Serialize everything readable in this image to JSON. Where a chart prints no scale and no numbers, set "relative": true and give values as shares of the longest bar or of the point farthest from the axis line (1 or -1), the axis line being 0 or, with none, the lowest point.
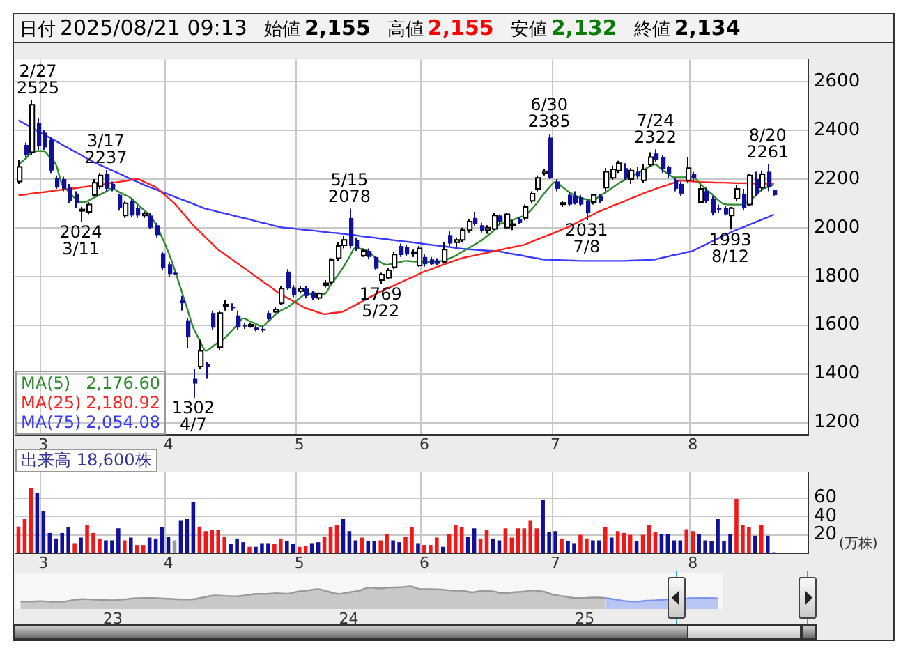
{
  "chart_data": [
    {
      "type": "candlestick",
      "title": "日付 2025/08/21 09:13",
      "categories": [
        null,
        null,
        null,
        null,
        "3",
        null,
        null,
        null,
        null,
        null,
        null,
        null,
        null,
        null,
        null,
        null,
        null,
        null,
        null,
        null,
        null,
        null,
        null,
        null,
        "4",
        null,
        null,
        null,
        null,
        null,
        null,
        null,
        null,
        null,
        null,
        null,
        null,
        null,
        null,
        null,
        null,
        null,
        null,
        null,
        null,
        "5",
        null,
        null,
        null,
        null,
        null,
        null,
        null,
        null,
        null,
        null,
        null,
        null,
        null,
        null,
        null,
        null,
        null,
        null,
        null,
        "6",
        null,
        null,
        null,
        null,
        null,
        null,
        null,
        null,
        null,
        null,
        null,
        null,
        null,
        null,
        null,
        null,
        null,
        null,
        null,
        null,
        "7",
        null,
        null,
        null,
        null,
        null,
        null,
        null,
        null,
        null,
        null,
        null,
        null,
        null,
        null,
        null,
        null,
        null,
        null,
        null,
        null,
        null,
        "8",
        null,
        null,
        null,
        null,
        null,
        null,
        null,
        null,
        null,
        null,
        null,
        null,
        null,
        null,
        null,
        null,
        null,
        null
      ],
      "ohlc": [
        [
          2190,
          2280,
          2180,
          2250
        ],
        [
          2340,
          2350,
          2290,
          2300
        ],
        [
          2310,
          2525,
          2300,
          2505
        ],
        [
          2430,
          2450,
          2320,
          2335
        ],
        [
          2390,
          2400,
          2320,
          2330
        ],
        [
          2360,
          2370,
          2225,
          2235
        ],
        [
          2205,
          2215,
          2160,
          2165
        ],
        [
          2200,
          2210,
          2150,
          2160
        ],
        [
          2165,
          2180,
          2100,
          2110
        ],
        [
          2140,
          2150,
          2080,
          2100
        ],
        [
          2070,
          2085,
          2024,
          2075
        ],
        [
          2065,
          2105,
          2055,
          2095
        ],
        [
          2135,
          2200,
          2130,
          2185
        ],
        [
          2170,
          2225,
          2160,
          2215
        ],
        [
          2220,
          2237,
          2150,
          2160
        ],
        [
          2180,
          2190,
          2150,
          2160
        ],
        [
          2135,
          2140,
          2070,
          2080
        ],
        [
          2050,
          2110,
          2040,
          2100
        ],
        [
          2110,
          2120,
          2045,
          2050
        ],
        [
          2080,
          2090,
          2040,
          2050
        ],
        [
          2050,
          2065,
          2040,
          2058
        ],
        [
          2050,
          2060,
          1995,
          2000
        ],
        [
          2010,
          2020,
          1960,
          1970
        ],
        [
          1895,
          1900,
          1825,
          1835
        ],
        [
          1850,
          1860,
          1800,
          1810
        ],
        [
          1815,
          1820,
          1805,
          1812
        ],
        [
          1705,
          1720,
          1660,
          1690
        ],
        [
          1620,
          1630,
          1505,
          1550
        ],
        [
          1380,
          1420,
          1302,
          1360
        ],
        [
          1430,
          1540,
          1420,
          1495
        ],
        [
          1440,
          1450,
          1380,
          1430
        ],
        [
          1650,
          1660,
          1580,
          1590
        ],
        [
          1510,
          1660,
          1500,
          1650
        ],
        [
          1680,
          1705,
          1660,
          1685
        ],
        [
          1675,
          1690,
          1660,
          1670
        ],
        [
          1640,
          1660,
          1580,
          1590
        ],
        [
          1600,
          1610,
          1585,
          1598
        ],
        [
          1598,
          1610,
          1590,
          1602
        ],
        [
          1590,
          1600,
          1575,
          1582
        ],
        [
          1585,
          1595,
          1570,
          1578
        ],
        [
          1650,
          1660,
          1620,
          1625
        ],
        [
          1655,
          1675,
          1650,
          1665
        ],
        [
          1690,
          1760,
          1685,
          1750
        ],
        [
          1820,
          1830,
          1745,
          1750
        ],
        [
          1755,
          1765,
          1715,
          1725
        ],
        [
          1740,
          1760,
          1730,
          1750
        ],
        [
          1750,
          1760,
          1710,
          1720
        ],
        [
          1735,
          1740,
          1705,
          1712
        ],
        [
          1712,
          1735,
          1705,
          1730
        ],
        [
          1765,
          1785,
          1755,
          1772
        ],
        [
          1778,
          1875,
          1770,
          1868
        ],
        [
          1875,
          1940,
          1865,
          1925
        ],
        [
          1928,
          1965,
          1915,
          1950
        ],
        [
          2040,
          2078,
          1915,
          1925
        ],
        [
          1950,
          1960,
          1905,
          1915
        ],
        [
          1886,
          1915,
          1880,
          1905
        ],
        [
          1905,
          1915,
          1870,
          1880
        ],
        [
          1880,
          1885,
          1825,
          1832
        ],
        [
          1785,
          1815,
          1769,
          1808
        ],
        [
          1795,
          1835,
          1790,
          1825
        ],
        [
          1838,
          1900,
          1830,
          1890
        ],
        [
          1925,
          1935,
          1880,
          1888
        ],
        [
          1920,
          1930,
          1885,
          1890
        ],
        [
          1895,
          1910,
          1880,
          1900
        ],
        [
          1845,
          1925,
          1840,
          1915
        ],
        [
          1880,
          1890,
          1840,
          1850
        ],
        [
          1870,
          1880,
          1845,
          1850
        ],
        [
          1865,
          1875,
          1845,
          1852
        ],
        [
          1860,
          1940,
          1855,
          1910
        ],
        [
          1970,
          1985,
          1925,
          1935
        ],
        [
          1940,
          1960,
          1920,
          1950
        ],
        [
          1950,
          2000,
          1940,
          1990
        ],
        [
          1990,
          2035,
          1980,
          2025
        ],
        [
          2040,
          2065,
          2005,
          2015
        ],
        [
          2010,
          2020,
          1980,
          1988
        ],
        [
          1990,
          2010,
          1975,
          2000
        ],
        [
          1995,
          2060,
          1990,
          2050
        ],
        [
          2050,
          2055,
          2015,
          2025
        ],
        [
          2000,
          2060,
          1995,
          2055
        ],
        [
          2010,
          2030,
          1990,
          2015
        ],
        [
          2035,
          2045,
          2015,
          2020
        ],
        [
          2040,
          2095,
          2030,
          2085
        ],
        [
          2110,
          2150,
          2100,
          2140
        ],
        [
          2160,
          2215,
          2150,
          2205
        ],
        [
          2225,
          2240,
          2215,
          2232
        ],
        [
          2370,
          2385,
          2200,
          2205
        ],
        [
          2190,
          2200,
          2150,
          2160
        ],
        [
          2100,
          2110,
          2085,
          2102
        ],
        [
          2135,
          2145,
          2090,
          2095
        ],
        [
          2130,
          2150,
          2095,
          2100
        ],
        [
          2125,
          2135,
          2090,
          2095
        ],
        [
          2110,
          2120,
          2031,
          2060
        ],
        [
          2105,
          2140,
          2095,
          2135
        ],
        [
          2130,
          2140,
          2100,
          2110
        ],
        [
          2165,
          2245,
          2150,
          2230
        ],
        [
          2205,
          2255,
          2195,
          2240
        ],
        [
          2235,
          2275,
          2225,
          2265
        ],
        [
          2245,
          2265,
          2195,
          2205
        ],
        [
          2200,
          2245,
          2180,
          2235
        ],
        [
          2230,
          2250,
          2200,
          2210
        ],
        [
          2195,
          2260,
          2185,
          2240
        ],
        [
          2260,
          2310,
          2250,
          2290
        ],
        [
          2305,
          2322,
          2270,
          2280
        ],
        [
          2290,
          2300,
          2225,
          2240
        ],
        [
          2250,
          2255,
          2205,
          2220
        ],
        [
          2195,
          2205,
          2150,
          2160
        ],
        [
          2180,
          2190,
          2130,
          2140
        ],
        [
          2195,
          2290,
          2185,
          2245
        ],
        [
          2220,
          2230,
          2190,
          2205
        ],
        [
          2105,
          2175,
          2100,
          2160
        ],
        [
          2150,
          2165,
          2100,
          2110
        ],
        [
          2120,
          2130,
          2050,
          2060
        ],
        [
          2080,
          2095,
          2060,
          2078
        ],
        [
          2080,
          2090,
          2050,
          2055
        ],
        [
          2050,
          2085,
          1993,
          2080
        ],
        [
          2120,
          2175,
          2110,
          2160
        ],
        [
          2140,
          2160,
          2070,
          2080
        ],
        [
          2095,
          2220,
          2090,
          2215
        ],
        [
          2200,
          2230,
          2130,
          2140
        ],
        [
          2165,
          2235,
          2150,
          2220
        ],
        [
          2230,
          2261,
          2150,
          2165
        ],
        [
          2155,
          2155,
          2132,
          2134
        ],
        null,
        null,
        null,
        null,
        null
      ],
      "series": [
        {
          "name": "MA(5) 2,176.60",
          "type": "line",
          "color": "#2e8b2e",
          "values": [
            2260,
            2280,
            2305,
            2315,
            2315,
            2290,
            2260,
            2177,
            2150,
            2122,
            2105,
            2108,
            2122,
            2135,
            2148,
            2161,
            2148,
            2135,
            2122,
            2098,
            2075,
            2051,
            2015,
            1960,
            1900,
            1830,
            1750,
            1670,
            1590,
            1540,
            1495,
            1510,
            1530,
            1546,
            1573,
            1600,
            1628,
            1617,
            1606,
            1595,
            1615,
            1640,
            1660,
            1672,
            1690,
            1710,
            1727,
            1727,
            1727,
            1727,
            1765,
            1800,
            1837,
            1880,
            1919,
            1912,
            1905,
            1880,
            1858,
            1848,
            1853,
            1858,
            1864,
            1862,
            1860,
            1859,
            1861,
            1863,
            1864,
            1874,
            1885,
            1900,
            1915,
            1930,
            1945,
            1965,
            1985,
            2013,
            2022,
            2031,
            2040,
            2050,
            2070,
            2100,
            2135,
            2165,
            2188,
            2170,
            2150,
            2135,
            2122,
            2116,
            2111,
            2128,
            2145,
            2162,
            2180,
            2195,
            2208,
            2222,
            2236,
            2250,
            2260,
            2240,
            2222,
            2207,
            2207,
            2208,
            2210,
            2185,
            2160,
            2140,
            2115,
            2097,
            2095,
            2095,
            2095,
            2110,
            2130,
            2155,
            2168,
            2177,
            null,
            null,
            null,
            null,
            null
          ]
        },
        {
          "name": "MA(25) 2,180.92",
          "type": "line",
          "color": "#ff2020",
          "values": [
            2133,
            2136,
            2140,
            2143,
            2146,
            2149,
            2153,
            2156,
            2159,
            2162,
            2166,
            2169,
            2172,
            2176,
            2180,
            2184,
            2188,
            2192,
            2196,
            2200,
            2190,
            2178,
            2166,
            2144,
            2122,
            2100,
            2070,
            2040,
            2010,
            1985,
            1960,
            1935,
            1910,
            1892,
            1874,
            1855,
            1837,
            1819,
            1800,
            1782,
            1764,
            1745,
            1727,
            1713,
            1699,
            1684,
            1670,
            1662,
            1653,
            1645,
            1649,
            1652,
            1656,
            1670,
            1683,
            1697,
            1711,
            1724,
            1738,
            1750,
            1761,
            1773,
            1785,
            1796,
            1808,
            1820,
            1829,
            1838,
            1848,
            1857,
            1866,
            1875,
            1881,
            1886,
            1892,
            1897,
            1903,
            1908,
            1914,
            1919,
            1925,
            1930,
            1940,
            1951,
            1961,
            1971,
            1981,
            1992,
            2002,
            2015,
            2028,
            2041,
            2054,
            2067,
            2077,
            2088,
            2098,
            2108,
            2119,
            2129,
            2140,
            2150,
            2159,
            2168,
            2176,
            2185,
            2194,
            2192,
            2190,
            2188,
            2187,
            2186,
            2185,
            2185,
            2184,
            2183,
            2183,
            2182,
            2182,
            2181,
            2181,
            2181,
            null,
            null,
            null,
            null,
            null
          ]
        },
        {
          "name": "MA(75) 2,054.08",
          "type": "line",
          "color": "#3a3aff",
          "values": [
            2441,
            2427,
            2413,
            2398,
            2384,
            2370,
            2356,
            2341,
            2327,
            2313,
            2299,
            2284,
            2270,
            2258,
            2247,
            2235,
            2224,
            2212,
            2200,
            2189,
            2177,
            2167,
            2157,
            2147,
            2137,
            2127,
            2117,
            2108,
            2098,
            2088,
            2078,
            2072,
            2065,
            2059,
            2053,
            2046,
            2040,
            2034,
            2027,
            2021,
            2015,
            2008,
            2002,
            1999,
            1997,
            1994,
            1991,
            1989,
            1986,
            1983,
            1980,
            1978,
            1975,
            1972,
            1969,
            1965,
            1962,
            1959,
            1956,
            1953,
            1949,
            1946,
            1943,
            1940,
            1937,
            1933,
            1930,
            1927,
            1924,
            1921,
            1917,
            1914,
            1912,
            1910,
            1908,
            1906,
            1905,
            1903,
            1898,
            1893,
            1889,
            1884,
            1879,
            1875,
            1870,
            1869,
            1868,
            1867,
            1866,
            1865,
            1864,
            1864,
            1864,
            1864,
            1864,
            1864,
            1864,
            1864,
            1865,
            1866,
            1867,
            1868,
            1870,
            1876,
            1882,
            1888,
            1893,
            1899,
            1905,
            1918,
            1930,
            1943,
            1955,
            1968,
            1980,
            1991,
            2001,
            2012,
            2022,
            2033,
            2043,
            2054,
            null,
            null,
            null,
            null,
            null
          ]
        }
      ],
      "ylim": [
        1150,
        2690
      ],
      "yticks": [
        1200,
        1400,
        1600,
        1800,
        2000,
        2200,
        2400,
        2600
      ],
      "grid": true,
      "legend": "bottom left",
      "annotations": [
        "始値 2,155",
        "高値 2,155",
        "安値 2,132",
        "終値 2,134",
        {
          "text": "2/27\n2525",
          "y": 2525
        },
        {
          "text": "3/17\n2237",
          "y": 2237
        },
        {
          "text": "2024\n3/11",
          "y": 2024
        },
        {
          "text": "1302\n4/7",
          "y": 1302
        },
        {
          "text": "5/15\n2078",
          "y": 2078
        },
        {
          "text": "1769\n5/22",
          "y": 1769
        },
        {
          "text": "6/30\n2385",
          "y": 2385
        },
        {
          "text": "2031\n7/8",
          "y": 2031
        },
        {
          "text": "7/24\n2322",
          "y": 2322
        },
        {
          "text": "1993\n8/12",
          "y": 1993
        },
        {
          "text": "8/20\n2261",
          "y": 2261
        }
      ]
    },
    {
      "type": "bar",
      "title": "出来高 18,600株",
      "ylabel": "(万株)",
      "categories": [
        null,
        null,
        null,
        null,
        "3",
        null,
        null,
        null,
        null,
        null,
        null,
        null,
        null,
        null,
        null,
        null,
        null,
        null,
        null,
        null,
        null,
        null,
        null,
        null,
        "4",
        null,
        null,
        null,
        null,
        null,
        null,
        null,
        null,
        null,
        null,
        null,
        null,
        null,
        null,
        null,
        null,
        null,
        null,
        null,
        null,
        "5",
        null,
        null,
        null,
        null,
        null,
        null,
        null,
        null,
        null,
        null,
        null,
        null,
        null,
        null,
        null,
        null,
        null,
        null,
        null,
        "6",
        null,
        null,
        null,
        null,
        null,
        null,
        null,
        null,
        null,
        null,
        null,
        null,
        null,
        null,
        null,
        null,
        null,
        null,
        null,
        null,
        "7",
        null,
        null,
        null,
        null,
        null,
        null,
        null,
        null,
        null,
        null,
        null,
        null,
        null,
        null,
        null,
        null,
        null,
        null,
        null,
        null,
        null,
        "8",
        null,
        null,
        null,
        null,
        null,
        null,
        null,
        null,
        null,
        null,
        null,
        null,
        null,
        null,
        null,
        null,
        null,
        null
      ],
      "values": [
        29,
        37,
        71,
        65,
        46,
        22,
        16,
        22,
        28,
        11,
        17,
        31,
        22,
        16,
        14,
        14,
        27,
        14,
        17,
        9,
        9,
        17,
        16,
        28,
        18,
        14,
        36,
        37,
        56,
        29,
        24,
        25,
        25,
        18,
        10,
        16,
        12,
        7,
        7,
        11,
        11,
        10,
        16,
        13,
        10,
        7,
        8,
        11,
        12,
        18,
        28,
        31,
        37,
        24,
        14,
        17,
        13,
        13,
        14,
        21,
        14,
        12,
        18,
        28,
        11,
        9,
        9,
        17,
        7,
        21,
        31,
        28,
        18,
        27,
        16,
        25,
        16,
        14,
        27,
        17,
        27,
        27,
        36,
        27,
        58,
        23,
        24,
        16,
        13,
        11,
        20,
        16,
        14,
        14,
        28,
        17,
        24,
        22,
        20,
        13,
        20,
        31,
        23,
        21,
        21,
        14,
        14,
        26,
        24,
        21,
        14,
        13,
        37,
        13,
        21,
        59,
        31,
        28,
        19,
        31,
        19,
        1,
        null,
        null,
        null,
        null,
        null
      ],
      "colors": [
        "#f01818",
        "#f01818",
        "#f01818",
        "#10109a",
        "#10109a",
        "#10109a",
        "#10109a",
        "#10109a",
        "#10109a",
        "#f01818",
        "#10109a",
        "#f01818",
        "#f01818",
        "#f01818",
        "#10109a",
        "#10109a",
        "#10109a",
        "#f01818",
        "#10109a",
        "#f01818",
        "#f01818",
        "#10109a",
        "#10109a",
        "#10109a",
        "#10109a",
        "#9a9a9a",
        "#10109a",
        "#10109a",
        "#10109a",
        "#f01818",
        "#f01818",
        "#f01818",
        "#f01818",
        "#f01818",
        "#10109a",
        "#10109a",
        "#10109a",
        "#f01818",
        "#10109a",
        "#10109a",
        "#10109a",
        "#f01818",
        "#f01818",
        "#10109a",
        "#10109a",
        "#f01818",
        "#f01818",
        "#10109a",
        "#10109a",
        "#f01818",
        "#f01818",
        "#f01818",
        "#10109a",
        "#10109a",
        "#10109a",
        "#f01818",
        "#10109a",
        "#10109a",
        "#f01818",
        "#f01818",
        "#10109a",
        "#10109a",
        "#f01818",
        "#f01818",
        "#10109a",
        "#f01818",
        "#f01818",
        "#f01818",
        "#10109a",
        "#f01818",
        "#f01818",
        "#f01818",
        "#10109a",
        "#10109a",
        "#f01818",
        "#f01818",
        "#10109a",
        "#10109a",
        "#f01818",
        "#f01818",
        "#f01818",
        "#f01818",
        "#f01818",
        "#f01818",
        "#10109a",
        "#10109a",
        "#10109a",
        "#f01818",
        "#10109a",
        "#10109a",
        "#f01818",
        "#f01818",
        "#10109a",
        "#10109a",
        "#f01818",
        "#10109a",
        "#f01818",
        "#f01818",
        "#f01818",
        "#10109a",
        "#f01818",
        "#f01818",
        "#f01818",
        "#10109a",
        "#10109a",
        "#10109a",
        "#10109a",
        "#f01818",
        "#f01818",
        "#10109a",
        "#10109a",
        "#10109a",
        "#10109a",
        "#10109a",
        "#10109a",
        "#f01818",
        "#f01818",
        "#f01818",
        "#10109a",
        "#f01818",
        "#10109a",
        "#10109a",
        null,
        null,
        null,
        null,
        null
      ],
      "ylim": [
        0,
        88
      ],
      "yticks": [
        20,
        40,
        60
      ],
      "grid": true
    },
    {
      "type": "area",
      "relative": true,
      "categories": [
        null,
        null,
        null,
        null,
        null,
        null,
        null,
        null,
        null,
        "23",
        null,
        null,
        null,
        null,
        null,
        null,
        null,
        null,
        null,
        null,
        null,
        null,
        null,
        null,
        null,
        null,
        null,
        null,
        null,
        null,
        null,
        null,
        "24",
        null,
        null,
        null,
        null,
        null,
        null,
        null,
        null,
        null,
        null,
        null,
        null,
        null,
        null,
        null,
        null,
        null,
        null,
        null,
        null,
        null,
        null,
        "25",
        null,
        null,
        null,
        null,
        null,
        null,
        null,
        null,
        null,
        null,
        null,
        null,
        null
      ],
      "series": [
        {
          "color": "#999999",
          "values": [
            0.33,
            0.33,
            0.35,
            0.32,
            0.32,
            0.39,
            0.44,
            0.42,
            0.4,
            0.39,
            0.42,
            0.47,
            0.49,
            0.49,
            0.46,
            0.44,
            0.42,
            0.44,
            0.53,
            0.6,
            0.58,
            0.56,
            0.61,
            0.67,
            0.67,
            0.7,
            0.68,
            0.77,
            0.82,
            0.88,
            0.77,
            0.67,
            0.74,
            0.81,
            0.95,
            0.91,
            0.95,
            0.96,
            1,
            0.88,
            0.88,
            0.86,
            0.82,
            0.81,
            0.74,
            0.81,
            0.79,
            0.7,
            0.74,
            0.77,
            0.82,
            0.77,
            0.63,
            0.56,
            0.49,
            0.49,
            0.51,
            0.49,
            null,
            null,
            null,
            null,
            null,
            null,
            null,
            null,
            null,
            null,
            null
          ]
        },
        {
          "color": "#7b93ee",
          "values": [
            null,
            null,
            null,
            null,
            null,
            null,
            null,
            null,
            null,
            null,
            null,
            null,
            null,
            null,
            null,
            null,
            null,
            null,
            null,
            null,
            null,
            null,
            null,
            null,
            null,
            null,
            null,
            null,
            null,
            null,
            null,
            null,
            null,
            null,
            null,
            null,
            null,
            null,
            null,
            null,
            null,
            null,
            null,
            null,
            null,
            null,
            null,
            null,
            null,
            null,
            null,
            null,
            null,
            null,
            null,
            null,
            null,
            0.49,
            0.42,
            0.35,
            0.33,
            0.37,
            0.39,
            0.42,
            0.44,
            0.47,
            0.49,
            0.49,
            0.47
          ]
        }
      ]
    }
  ]
}
